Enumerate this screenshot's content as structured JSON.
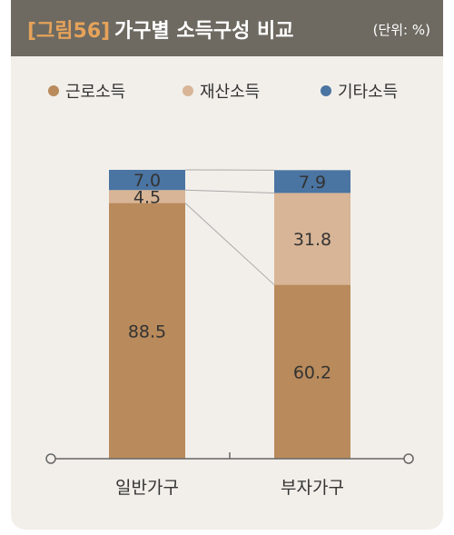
{
  "header": {
    "figure_num": "[그림56]",
    "title": "가구별 소득구성 비교",
    "unit": "(단위: %)"
  },
  "colors": {
    "labor": "#b98a5b",
    "property": "#d8b596",
    "other": "#4a74a2"
  },
  "chart_data": {
    "type": "bar",
    "stacked": true,
    "categories": [
      "일반가구",
      "부자가구"
    ],
    "series": [
      {
        "name": "근로소득",
        "values": [
          88.5,
          60.2
        ]
      },
      {
        "name": "재산소득",
        "values": [
          4.5,
          31.8
        ]
      },
      {
        "name": "기타소득",
        "values": [
          7.0,
          7.9
        ]
      }
    ],
    "value_labels": [
      [
        "88.5",
        "4.5",
        "7.0"
      ],
      [
        "60.2",
        "31.8",
        "7.9"
      ]
    ],
    "ylim": [
      0,
      100
    ],
    "legend": "top",
    "grid": false
  }
}
